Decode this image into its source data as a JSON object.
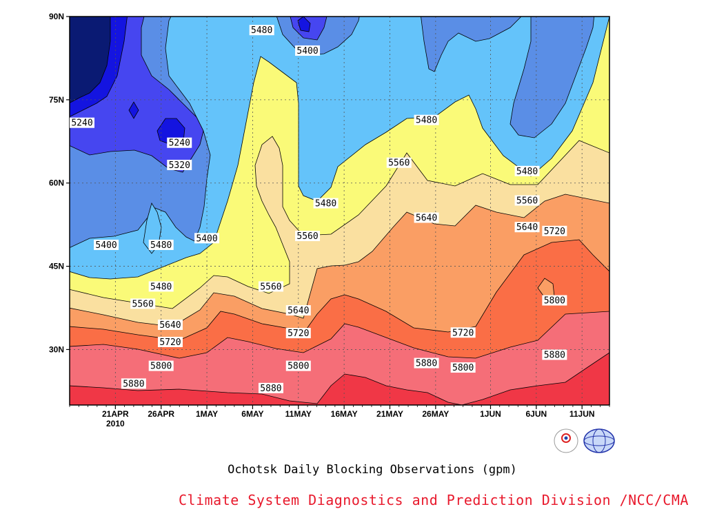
{
  "chart_data": {
    "type": "contour",
    "title": "Ochotsk Daily Blocking Observations (gpm)",
    "credit": "Climate System Diagnostics and Prediction Division /NCC/CMA",
    "credit_color": "#e8192c",
    "x_ticks": [
      "21APR",
      "26APR",
      "1MAY",
      "6MAY",
      "11MAY",
      "16MAY",
      "21MAY",
      "26MAY",
      "1JUN",
      "6JUN",
      "11JUN"
    ],
    "x_year_label": "2010",
    "xlim": [
      "2010-04-16",
      "2010-06-14"
    ],
    "y_ticks": [
      "90N",
      "75N",
      "60N",
      "45N",
      "30N"
    ],
    "y_tick_values": [
      90,
      75,
      60,
      45,
      30
    ],
    "ylim": [
      20,
      90
    ],
    "grid": true,
    "contour_levels": [
      5240,
      5320,
      5400,
      5480,
      5560,
      5640,
      5720,
      5800,
      5880
    ],
    "fill_colors": [
      "#0a1a73",
      "#1414e0",
      "#4646f0",
      "#5a8ee6",
      "#64c3fa",
      "#fafa78",
      "#fae0a0",
      "#fa9e64",
      "#fa6e46",
      "#f56e78",
      "#f03746"
    ],
    "contour_labels": [
      {
        "text": "5240",
        "date": "2010-04-16",
        "lat": 70.8
      },
      {
        "text": "5240",
        "date": "2010-04-28",
        "lat": 67.2
      },
      {
        "text": "5320",
        "date": "2010-04-28",
        "lat": 63.2
      },
      {
        "text": "5400",
        "date": "2010-04-20",
        "lat": 48.8
      },
      {
        "text": "5400",
        "date": "2010-05-01",
        "lat": 50.0
      },
      {
        "text": "5400",
        "date": "2010-05-12",
        "lat": 83.8
      },
      {
        "text": "5480",
        "date": "2010-05-07",
        "lat": 87.5
      },
      {
        "text": "5480",
        "date": "2010-04-26",
        "lat": 48.8
      },
      {
        "text": "5480",
        "date": "2010-04-26",
        "lat": 41.3
      },
      {
        "text": "5480",
        "date": "2010-05-14",
        "lat": 56.3
      },
      {
        "text": "5480",
        "date": "2010-05-25",
        "lat": 71.3
      },
      {
        "text": "5480",
        "date": "2010-06-05",
        "lat": 62.1
      },
      {
        "text": "5560",
        "date": "2010-04-24",
        "lat": 38.2
      },
      {
        "text": "5560",
        "date": "2010-05-08",
        "lat": 41.3
      },
      {
        "text": "5560",
        "date": "2010-05-12",
        "lat": 50.4
      },
      {
        "text": "5560",
        "date": "2010-05-22",
        "lat": 63.6
      },
      {
        "text": "5560",
        "date": "2010-06-05",
        "lat": 56.8
      },
      {
        "text": "5640",
        "date": "2010-04-27",
        "lat": 34.4
      },
      {
        "text": "5640",
        "date": "2010-05-11",
        "lat": 37.0
      },
      {
        "text": "5640",
        "date": "2010-05-25",
        "lat": 53.7
      },
      {
        "text": "5640",
        "date": "2010-06-05",
        "lat": 52.0
      },
      {
        "text": "5720",
        "date": "2010-04-27",
        "lat": 31.3
      },
      {
        "text": "5720",
        "date": "2010-05-11",
        "lat": 32.9
      },
      {
        "text": "5720",
        "date": "2010-05-29",
        "lat": 33.0
      },
      {
        "text": "5720",
        "date": "2010-06-08",
        "lat": 51.3
      },
      {
        "text": "5800",
        "date": "2010-04-26",
        "lat": 27.0
      },
      {
        "text": "5800",
        "date": "2010-05-11",
        "lat": 27.0
      },
      {
        "text": "5800",
        "date": "2010-05-29",
        "lat": 26.7
      },
      {
        "text": "5800",
        "date": "2010-06-08",
        "lat": 38.8
      },
      {
        "text": "5880",
        "date": "2010-04-23",
        "lat": 23.8
      },
      {
        "text": "5880",
        "date": "2010-05-08",
        "lat": 23.0
      },
      {
        "text": "5880",
        "date": "2010-05-25",
        "lat": 27.5
      },
      {
        "text": "5880",
        "date": "2010-06-08",
        "lat": 29.0
      }
    ]
  }
}
